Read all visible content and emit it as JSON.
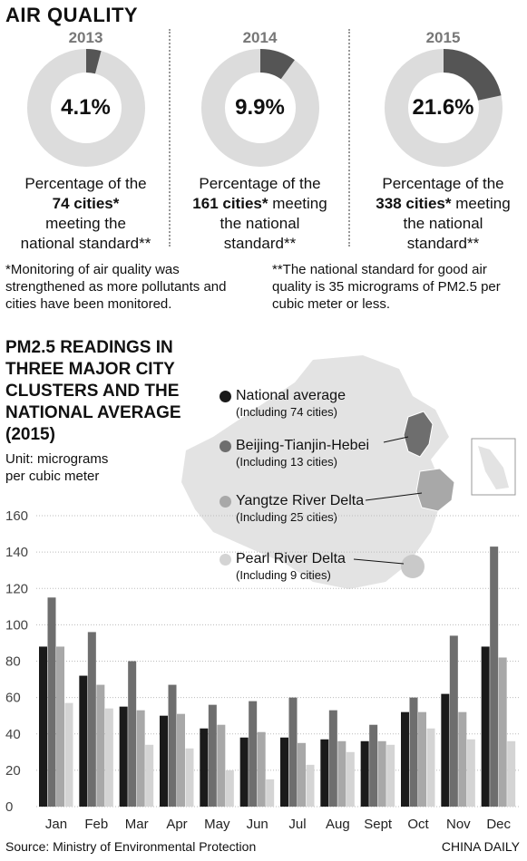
{
  "header": {
    "title": "AIR QUALITY"
  },
  "donuts": [
    {
      "year": "2013",
      "value": 4.1,
      "label": "4.1%",
      "line1": "Percentage of the",
      "bold": "74 cities*",
      "after_bold": "",
      "line3": "meeting the",
      "line4": "national standard**"
    },
    {
      "year": "2014",
      "value": 9.9,
      "label": "9.9%",
      "line1": "Percentage of the",
      "bold": "161 cities*",
      "after_bold": "meeting",
      "line3": "the national",
      "line4": "standard**"
    },
    {
      "year": "2015",
      "value": 21.6,
      "label": "21.6%",
      "line1": "Percentage of the",
      "bold": "338 cities*",
      "after_bold": "meeting",
      "line3": "the national",
      "line4": "standard**"
    }
  ],
  "notes": {
    "left": "*Monitoring of air quality was strengthened as more pollutants and cities have been monitored.",
    "right": "**The national standard for good air quality is 35 micrograms of PM2.5 per cubic meter or less."
  },
  "pm_section": {
    "title": "PM2.5 READINGS IN THREE MAJOR CITY CLUSTERS AND THE NATIONAL AVERAGE (2015)",
    "unit": "Unit: micrograms per cubic meter"
  },
  "colors": {
    "national": "#1a1a1a",
    "bth": "#6e6e6e",
    "yrd": "#a8a8a8",
    "prd": "#d4d4d4",
    "map": "#e3e3e3"
  },
  "chart_data": {
    "type": "bar",
    "categories": [
      "Jan",
      "Feb",
      "Mar",
      "Apr",
      "May",
      "Jun",
      "Jul",
      "Aug",
      "Sept",
      "Oct",
      "Nov",
      "Dec"
    ],
    "series": [
      {
        "name": "National average",
        "sub": "(Including 74 cities)",
        "color": "#1a1a1a",
        "values": [
          88,
          72,
          55,
          50,
          43,
          38,
          38,
          37,
          36,
          52,
          62,
          88
        ]
      },
      {
        "name": "Beijing-Tianjin-Hebei",
        "sub": "(Including 13 cities)",
        "color": "#6e6e6e",
        "values": [
          115,
          96,
          80,
          67,
          56,
          58,
          60,
          53,
          45,
          60,
          94,
          143
        ]
      },
      {
        "name": "Yangtze River Delta",
        "sub": "(Including 25 cities)",
        "color": "#a8a8a8",
        "values": [
          88,
          67,
          53,
          51,
          45,
          41,
          35,
          36,
          36,
          52,
          52,
          82
        ]
      },
      {
        "name": "Pearl River Delta",
        "sub": "(Including 9 cities)",
        "color": "#d4d4d4",
        "values": [
          57,
          54,
          34,
          32,
          20,
          15,
          23,
          30,
          34,
          43,
          37,
          36
        ]
      }
    ],
    "yticks": [
      0,
      20,
      40,
      60,
      80,
      100,
      120,
      140,
      160
    ],
    "ylim": [
      0,
      165
    ],
    "grid": true,
    "legend_position": "top-right"
  },
  "footer": {
    "source": "Source: Ministry of Environmental Protection",
    "credit": "CHINA DAILY"
  }
}
